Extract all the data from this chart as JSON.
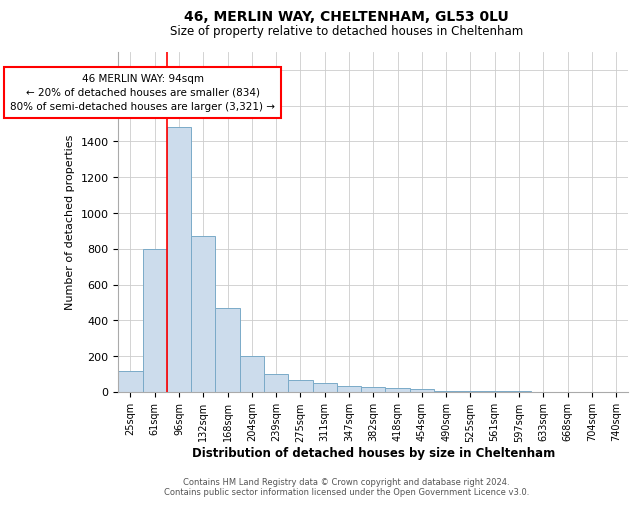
{
  "title1": "46, MERLIN WAY, CHELTENHAM, GL53 0LU",
  "title2": "Size of property relative to detached houses in Cheltenham",
  "xlabel": "Distribution of detached houses by size in Cheltenham",
  "ylabel": "Number of detached properties",
  "categories": [
    "25sqm",
    "61sqm",
    "96sqm",
    "132sqm",
    "168sqm",
    "204sqm",
    "239sqm",
    "275sqm",
    "311sqm",
    "347sqm",
    "382sqm",
    "418sqm",
    "454sqm",
    "490sqm",
    "525sqm",
    "561sqm",
    "597sqm",
    "633sqm",
    "668sqm",
    "704sqm",
    "740sqm"
  ],
  "values": [
    120,
    800,
    1480,
    870,
    470,
    200,
    100,
    65,
    50,
    35,
    30,
    20,
    15,
    8,
    5,
    4,
    3,
    2,
    2,
    1,
    1
  ],
  "bar_color": "#ccdcec",
  "bar_edge_color": "#7aaac8",
  "annotation_text": "46 MERLIN WAY: 94sqm\n← 20% of detached houses are smaller (834)\n80% of semi-detached houses are larger (3,321) →",
  "annotation_box_color": "white",
  "annotation_box_edge": "red",
  "vline_color": "red",
  "vline_x": 2,
  "ylim": [
    0,
    1900
  ],
  "yticks": [
    0,
    200,
    400,
    600,
    800,
    1000,
    1200,
    1400,
    1600,
    1800
  ],
  "footer1": "Contains HM Land Registry data © Crown copyright and database right 2024.",
  "footer2": "Contains public sector information licensed under the Open Government Licence v3.0.",
  "bg_color": "white",
  "grid_color": "#cccccc"
}
